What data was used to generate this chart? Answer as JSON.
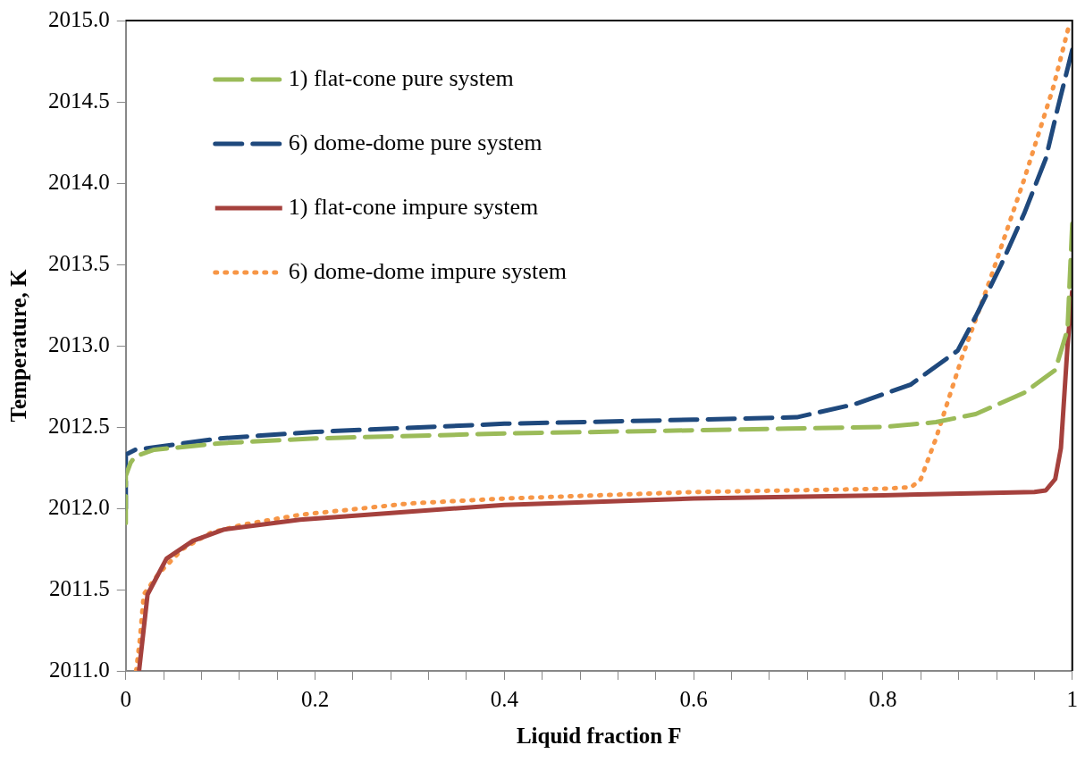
{
  "chart_data": {
    "type": "line",
    "xlabel": "Liquid fraction F",
    "ylabel": "Temperature, K",
    "xlim": [
      0,
      1
    ],
    "ylim": [
      2011.0,
      2015.0
    ],
    "xticks": [
      0,
      {
        "value": 0.04,
        "label": null
      },
      {
        "value": 0.08,
        "label": null
      },
      {
        "value": 0.12,
        "label": null
      },
      {
        "value": 0.16,
        "label": null
      },
      0.2,
      {
        "value": 0.24,
        "label": null
      },
      {
        "value": 0.28,
        "label": null
      },
      {
        "value": 0.32,
        "label": null
      },
      {
        "value": 0.36,
        "label": null
      },
      0.4,
      {
        "value": 0.44,
        "label": null
      },
      {
        "value": 0.48,
        "label": null
      },
      {
        "value": 0.52,
        "label": null
      },
      {
        "value": 0.56,
        "label": null
      },
      0.6,
      {
        "value": 0.64,
        "label": null
      },
      {
        "value": 0.68,
        "label": null
      },
      {
        "value": 0.72,
        "label": null
      },
      {
        "value": 0.76,
        "label": null
      },
      0.8,
      {
        "value": 0.84,
        "label": null
      },
      {
        "value": 0.88,
        "label": null
      },
      {
        "value": 0.92,
        "label": null
      },
      {
        "value": 0.96,
        "label": null
      },
      1
    ],
    "yticks": [
      {
        "value": 2011.0,
        "label": "2011.0"
      },
      {
        "value": 2011.5,
        "label": "2011.5"
      },
      {
        "value": 2012.0,
        "label": "2012.0"
      },
      {
        "value": 2012.5,
        "label": "2012.5"
      },
      {
        "value": 2013.0,
        "label": "2013.0"
      },
      {
        "value": 2013.5,
        "label": "2013.5"
      },
      {
        "value": 2014.0,
        "label": "2014.0"
      },
      {
        "value": 2014.5,
        "label": "2014.5"
      },
      {
        "value": 2015.0,
        "label": "2015.0"
      }
    ],
    "grid": false,
    "legend": "top left",
    "marker": "none",
    "series": [
      {
        "name": "1) flat-cone pure system",
        "color": "#9bbb59",
        "line_style": "dashed",
        "x": [
          0,
          0,
          0.005,
          0.01,
          0.03,
          0.1,
          0.2,
          0.4,
          0.6,
          0.7,
          0.8,
          0.856,
          0.898,
          0.949,
          0.982,
          0.995,
          1
        ],
        "values": [
          2011.91,
          2012.2,
          2012.28,
          2012.32,
          2012.36,
          2012.4,
          2012.43,
          2012.46,
          2012.48,
          2012.49,
          2012.5,
          2012.53,
          2012.58,
          2012.71,
          2012.85,
          2013.1,
          2013.75
        ]
      },
      {
        "name": "6) dome-dome pure system",
        "color": "#1f497d",
        "line_style": "dashed",
        "x": [
          0,
          0,
          0.01,
          0.1,
          0.2,
          0.4,
          0.6,
          0.709,
          0.77,
          0.829,
          0.879,
          0.898,
          0.925,
          0.949,
          0.972,
          0.985,
          1
        ],
        "values": [
          2012.0,
          2012.33,
          2012.36,
          2012.43,
          2012.47,
          2012.52,
          2012.545,
          2012.56,
          2012.64,
          2012.76,
          2012.97,
          2013.18,
          2013.5,
          2013.81,
          2014.15,
          2014.47,
          2014.82
        ]
      },
      {
        "name": "1) flat-cone impure system",
        "color": "#a5413d",
        "line_style": "solid",
        "x": [
          0.014,
          0.023,
          0.043,
          0.071,
          0.104,
          0.184,
          0.3,
          0.4,
          0.6,
          0.8,
          0.96,
          0.972,
          0.982,
          0.988,
          0.995,
          1
        ],
        "values": [
          2011.0,
          2011.47,
          2011.69,
          2011.8,
          2011.87,
          2011.93,
          2011.98,
          2012.02,
          2012.06,
          2012.08,
          2012.1,
          2012.11,
          2012.18,
          2012.37,
          2013.0,
          2013.34
        ]
      },
      {
        "name": "6) dome-dome impure system",
        "color": "#f79646",
        "line_style": "dotted",
        "x": [
          0.011,
          0.015,
          0.019,
          0.035,
          0.06,
          0.09,
          0.124,
          0.184,
          0.3,
          0.4,
          0.6,
          0.8,
          0.83,
          0.84,
          0.856,
          0.883,
          0.914,
          0.949,
          0.98,
          0.997
        ],
        "values": [
          2011.0,
          2011.2,
          2011.47,
          2011.6,
          2011.75,
          2011.85,
          2011.9,
          2011.96,
          2012.03,
          2012.06,
          2012.1,
          2012.12,
          2012.13,
          2012.18,
          2012.43,
          2012.92,
          2013.42,
          2014.02,
          2014.59,
          2014.98
        ]
      }
    ]
  }
}
